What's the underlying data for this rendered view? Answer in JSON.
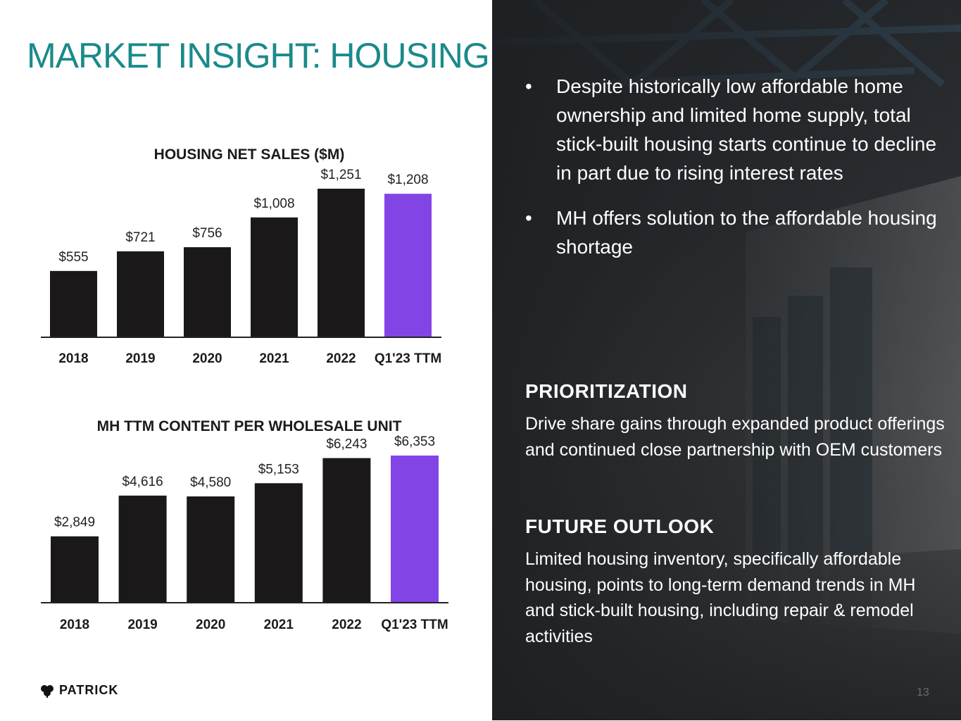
{
  "slide": {
    "title": "MARKET INSIGHT: HOUSING",
    "brand": "PATRICK",
    "page_number": "13",
    "colors": {
      "title": "#1a8a8a",
      "bar": "#1b1819",
      "highlight": "#8344e6"
    }
  },
  "bullets": [
    {
      "marker": "•",
      "text": "Despite historically low affordable home ownership and limited home supply, total stick-built housing starts continue to decline in part due to rising interest rates"
    },
    {
      "marker": "•",
      "text": "MH offers solution to the affordable housing shortage"
    }
  ],
  "prioritization": {
    "heading": "PRIORITIZATION",
    "body": "Drive share gains through expanded product offerings and continued close partnership with OEM customers"
  },
  "future_outlook": {
    "heading": "FUTURE OUTLOOK",
    "body": "Limited housing inventory, specifically affordable housing, points to long-term demand trends in MH and stick-built housing, including repair & remodel activities"
  },
  "chart_data": [
    {
      "type": "bar",
      "title": "HOUSING NET SALES ($M)",
      "categories": [
        "2018",
        "2019",
        "2020",
        "2021",
        "2022",
        "Q1'23 TTM"
      ],
      "values": [
        555,
        721,
        756,
        1008,
        1251,
        1208
      ],
      "labels": [
        "$555",
        "$721",
        "$756",
        "$1,008",
        "$1,251",
        "$1,208"
      ],
      "highlight_index": 5,
      "xlabel": "",
      "ylabel": "",
      "ylim": [
        0,
        1251
      ]
    },
    {
      "type": "bar",
      "title": "MH TTM CONTENT PER WHOLESALE UNIT",
      "categories": [
        "2018",
        "2019",
        "2020",
        "2021",
        "2022",
        "Q1'23 TTM"
      ],
      "values": [
        2849,
        4616,
        4580,
        5153,
        6243,
        6353
      ],
      "labels": [
        "$2,849",
        "$4,616",
        "$4,580",
        "$5,153",
        "$6,243",
        "$6,353"
      ],
      "highlight_index": 5,
      "xlabel": "",
      "ylabel": "",
      "ylim": [
        0,
        6353
      ]
    }
  ]
}
